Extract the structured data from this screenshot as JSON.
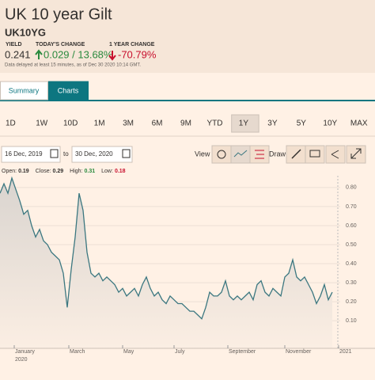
{
  "header": {
    "title": "UK 10 year Gilt",
    "symbol": "UK10YG",
    "stats": [
      {
        "label": "YIELD",
        "value": "0.241"
      },
      {
        "label": "TODAY'S CHANGE",
        "value": "0.029 / 13.68%"
      },
      {
        "label": "1 YEAR CHANGE",
        "value": "-70.79%"
      }
    ],
    "note": "Data delayed at least 15 minutes, as of Dec 30 2020 10:14 GMT."
  },
  "tabs": [
    "Summary",
    "Charts"
  ],
  "active_tab": "Charts",
  "ranges": [
    "1D",
    "1W",
    "10D",
    "1M",
    "3M",
    "6M",
    "9M",
    "YTD",
    "1Y",
    "3Y",
    "5Y",
    "10Y",
    "MAX"
  ],
  "active_range": "1Y",
  "toolbar": {
    "date_from": "16 Dec, 2019",
    "to": "to",
    "date_to": "30 Dec, 2020",
    "view": "View",
    "draw": "Draw"
  },
  "chart_data": {
    "type": "line",
    "legend": [
      {
        "label": "Open:",
        "value": 0.19
      },
      {
        "label": "Close:",
        "value": 0.29
      },
      {
        "label": "High:",
        "value": 0.31
      },
      {
        "label": "Low:",
        "value": 0.18
      }
    ],
    "color": "#3b7780",
    "values": [
      0.77,
      0.82,
      0.77,
      0.85,
      0.79,
      0.73,
      0.66,
      0.68,
      0.6,
      0.54,
      0.58,
      0.52,
      0.5,
      0.46,
      0.44,
      0.42,
      0.35,
      0.17,
      0.37,
      0.54,
      0.77,
      0.68,
      0.46,
      0.35,
      0.33,
      0.35,
      0.31,
      0.33,
      0.31,
      0.29,
      0.25,
      0.27,
      0.23,
      0.25,
      0.27,
      0.23,
      0.29,
      0.33,
      0.27,
      0.23,
      0.25,
      0.21,
      0.19,
      0.23,
      0.21,
      0.19,
      0.19,
      0.17,
      0.15,
      0.15,
      0.13,
      0.11,
      0.17,
      0.25,
      0.23,
      0.23,
      0.25,
      0.31,
      0.23,
      0.21,
      0.23,
      0.21,
      0.23,
      0.25,
      0.21,
      0.29,
      0.31,
      0.25,
      0.23,
      0.27,
      0.25,
      0.23,
      0.33,
      0.35,
      0.42,
      0.33,
      0.31,
      0.33,
      0.29,
      0.25,
      0.19,
      0.23,
      0.29,
      0.21,
      0.25
    ],
    "xlim": [
      0,
      86
    ],
    "xticks": [
      {
        "value": 3.6,
        "label": "January"
      },
      {
        "value": 17.4,
        "label": "March"
      },
      {
        "value": 31,
        "label": "May"
      },
      {
        "value": 44,
        "label": "July"
      },
      {
        "value": 57.6,
        "label": "September"
      },
      {
        "value": 72,
        "label": "November"
      },
      {
        "value": 85.6,
        "label": "2021"
      }
    ],
    "x_year_labels": [
      {
        "value": 3.6,
        "label": "2020"
      }
    ],
    "ylim": [
      -0.045,
      0.862
    ],
    "yticks": [
      {
        "value": 0.1,
        "label": "0.10"
      },
      {
        "value": 0.2,
        "label": "0.20"
      },
      {
        "value": 0.3,
        "label": "0.30"
      },
      {
        "value": 0.4,
        "label": "0.40"
      },
      {
        "value": 0.5,
        "label": "0.50"
      },
      {
        "value": 0.6,
        "label": "0.60"
      },
      {
        "value": 0.7,
        "label": "0.70"
      },
      {
        "value": 0.8,
        "label": "0.80"
      }
    ],
    "grid": true
  }
}
